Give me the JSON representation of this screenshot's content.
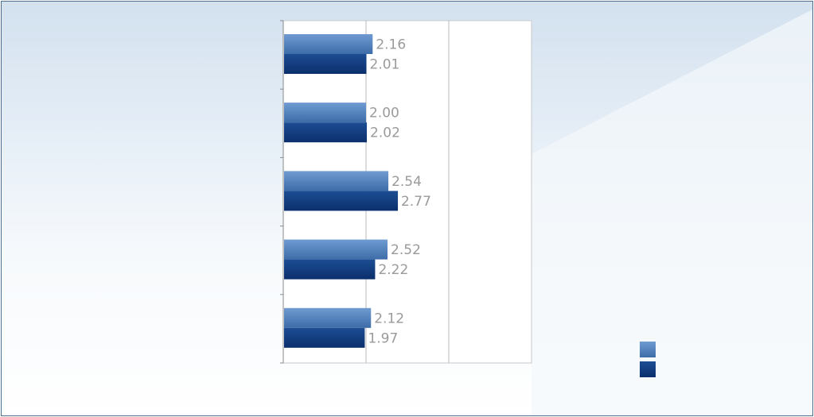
{
  "chart_data": {
    "type": "bar",
    "orientation": "horizontal",
    "title": "",
    "xlabel": "",
    "ylabel": "",
    "categories": [
      "",
      "",
      "",
      "",
      ""
    ],
    "series": [
      {
        "color": "#4f81bd",
        "values": [
          2.16,
          2.0,
          2.54,
          2.52,
          2.12
        ]
      },
      {
        "color": "#1f4e8c",
        "values": [
          2.01,
          2.02,
          2.77,
          2.22,
          1.97
        ]
      }
    ],
    "data_labels": [
      [
        "2.16",
        "2.00",
        "2.54",
        "2.52",
        "2.12"
      ],
      [
        "2.01",
        "2.02",
        "2.77",
        "2.22",
        "1.97"
      ]
    ],
    "xlim": [
      0,
      6
    ],
    "x_gridlines": [
      2,
      4
    ],
    "grid": true,
    "legend": {
      "placement": "bottom-right",
      "entries": [
        "",
        ""
      ]
    }
  }
}
